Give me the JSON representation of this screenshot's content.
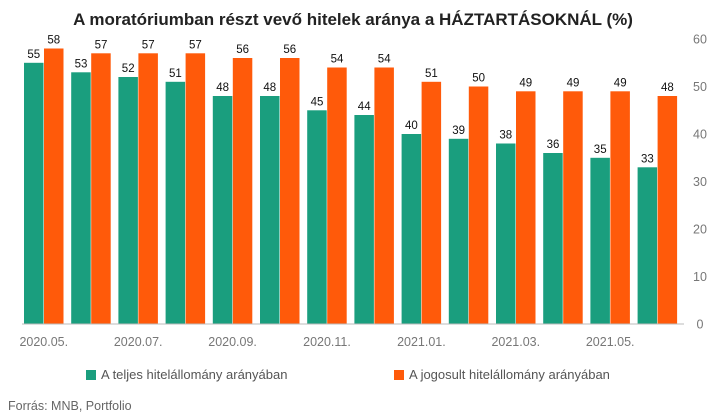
{
  "chart_data": {
    "type": "bar",
    "title": "A moratóriumban részt vevő hitelek aránya a HÁZTARTÁSOKNÁL (%)",
    "x_tick_labels": [
      "2020.05.",
      "2020.07.",
      "2020.09.",
      "2020.11.",
      "2021.01.",
      "2021.03.",
      "2021.05."
    ],
    "y_ticks": [
      0,
      10,
      20,
      30,
      40,
      50,
      60
    ],
    "ylim": [
      0,
      60
    ],
    "y_axis_side": "right",
    "legend_position": "bottom",
    "grid": false,
    "series": [
      {
        "name": "A teljes hitelállomány arányában",
        "color": "#1a9e7e",
        "values": [
          55,
          53,
          52,
          51,
          48,
          48,
          45,
          44,
          40,
          39,
          38,
          36,
          35,
          33
        ]
      },
      {
        "name": "A jogosult hitelállomány arányában",
        "color": "#ff5a0a",
        "values": [
          58,
          57,
          57,
          57,
          56,
          56,
          54,
          54,
          51,
          50,
          49,
          49,
          49,
          48
        ]
      }
    ],
    "value_labels": {
      "teljes": [
        "55",
        "53",
        "52",
        "51",
        "48",
        "48",
        "45",
        "44",
        "40",
        "39",
        "38",
        "36",
        "35",
        "33"
      ],
      "jogosult": [
        "58",
        "57",
        "57",
        "57",
        "56",
        "56",
        "54",
        "54",
        "51",
        "50",
        "49",
        "49",
        "49",
        "48"
      ]
    }
  },
  "source": "Forrás: MNB, Portfolio"
}
